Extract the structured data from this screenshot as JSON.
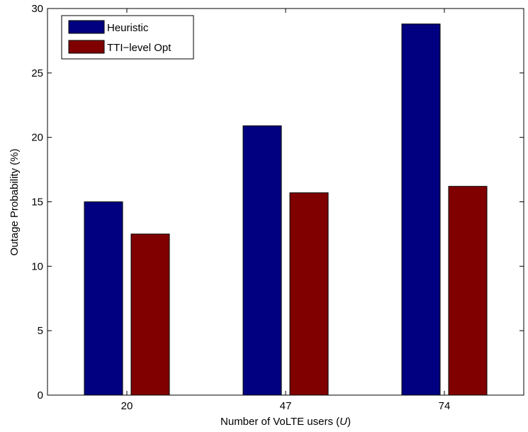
{
  "chart_data": {
    "type": "bar",
    "categories": [
      "20",
      "47",
      "74"
    ],
    "series": [
      {
        "name": "Heuristic",
        "color": "#000080",
        "values": [
          15.0,
          20.9,
          28.8
        ]
      },
      {
        "name": "TTI−level Opt",
        "color": "#800000",
        "values": [
          12.5,
          15.7,
          16.2
        ]
      }
    ],
    "xlabel": "Number of VoLTE users (",
    "xlabel_var": "U",
    "xlabel_end": ")",
    "ylabel": "Outage Probability (%)",
    "ylim": [
      0,
      30
    ],
    "yticks": [
      0,
      5,
      10,
      15,
      20,
      25,
      30
    ],
    "grid": false,
    "legend_position": "top-left"
  }
}
